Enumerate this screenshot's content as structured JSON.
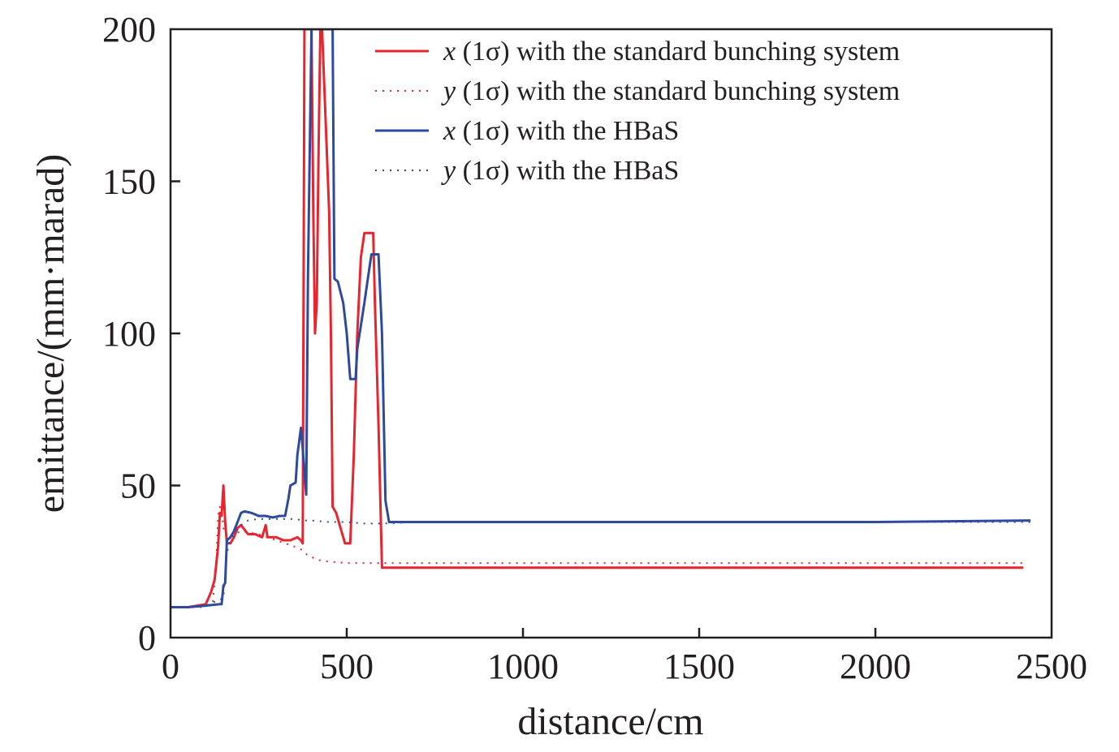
{
  "chart_data": {
    "type": "line",
    "xlabel": "distance/cm",
    "ylabel": "emittance/(mm·marad)",
    "xlim": [
      0,
      2500
    ],
    "ylim": [
      0,
      200
    ],
    "xticks": [
      0,
      500,
      1000,
      1500,
      2000,
      2500
    ],
    "yticks": [
      0,
      50,
      100,
      150,
      200
    ],
    "xtick_labels": [
      "0",
      "500",
      "1000",
      "1500",
      "2000",
      "2500"
    ],
    "ytick_labels": [
      "0",
      "50",
      "100",
      "150",
      "200"
    ],
    "grid": false,
    "legend_position": "top-right",
    "series": [
      {
        "name": "x (1σ) with the standard bunching system",
        "legend_var": "x",
        "legend_rest": "(1σ) with the standard bunching system",
        "color": "#e8252e",
        "dash": "solid",
        "points": [
          [
            0,
            10
          ],
          [
            50,
            10
          ],
          [
            100,
            11
          ],
          [
            115,
            15
          ],
          [
            125,
            19
          ],
          [
            135,
            30
          ],
          [
            140,
            41
          ],
          [
            145,
            40
          ],
          [
            150,
            50
          ],
          [
            155,
            38
          ],
          [
            160,
            31
          ],
          [
            170,
            31
          ],
          [
            180,
            33
          ],
          [
            190,
            36
          ],
          [
            200,
            37
          ],
          [
            220,
            34
          ],
          [
            240,
            34
          ],
          [
            260,
            33
          ],
          [
            270,
            37
          ],
          [
            275,
            33
          ],
          [
            300,
            33
          ],
          [
            320,
            32
          ],
          [
            340,
            32
          ],
          [
            360,
            33
          ],
          [
            370,
            32
          ],
          [
            375,
            31
          ],
          [
            380,
            200
          ],
          [
            385,
            200
          ],
          [
            400,
            200
          ],
          [
            405,
            140
          ],
          [
            410,
            100
          ],
          [
            415,
            110
          ],
          [
            420,
            160
          ],
          [
            425,
            200
          ],
          [
            430,
            200
          ],
          [
            440,
            170
          ],
          [
            450,
            140
          ],
          [
            455,
            100
          ],
          [
            460,
            43
          ],
          [
            470,
            41
          ],
          [
            480,
            37
          ],
          [
            490,
            33
          ],
          [
            495,
            31
          ],
          [
            510,
            31
          ],
          [
            520,
            60
          ],
          [
            530,
            100
          ],
          [
            540,
            125
          ],
          [
            550,
            133
          ],
          [
            575,
            133
          ],
          [
            580,
            110
          ],
          [
            590,
            70
          ],
          [
            600,
            23
          ],
          [
            700,
            23
          ],
          [
            1000,
            23
          ],
          [
            1500,
            23
          ],
          [
            2000,
            23
          ],
          [
            2300,
            23
          ],
          [
            2420,
            23
          ]
        ]
      },
      {
        "name": "y (1σ) with the standard bunching system",
        "legend_var": "y",
        "legend_rest": "(1σ) with the standard bunching system",
        "color": "#e8252e",
        "dash": "dotted",
        "points": [
          [
            0,
            10
          ],
          [
            50,
            10
          ],
          [
            100,
            10
          ],
          [
            120,
            12
          ],
          [
            130,
            25
          ],
          [
            135,
            40
          ],
          [
            140,
            43
          ],
          [
            145,
            42
          ],
          [
            150,
            36
          ],
          [
            160,
            33
          ],
          [
            180,
            34
          ],
          [
            200,
            35
          ],
          [
            250,
            34
          ],
          [
            300,
            32
          ],
          [
            350,
            30
          ],
          [
            370,
            29
          ],
          [
            390,
            27
          ],
          [
            420,
            25.5
          ],
          [
            450,
            25
          ],
          [
            500,
            24.5
          ],
          [
            550,
            24.5
          ],
          [
            600,
            24.5
          ],
          [
            700,
            24.5
          ],
          [
            1000,
            24.5
          ],
          [
            1500,
            24.5
          ],
          [
            2000,
            24.5
          ],
          [
            2420,
            24.5
          ]
        ]
      },
      {
        "name": "x (1σ) with the HBaS",
        "legend_var": "x",
        "legend_rest": "(1σ) with the HBaS",
        "color": "#2e4a9e",
        "dash": "solid",
        "points": [
          [
            0,
            10
          ],
          [
            50,
            10
          ],
          [
            100,
            10.5
          ],
          [
            140,
            11
          ],
          [
            145,
            11
          ],
          [
            150,
            17
          ],
          [
            155,
            18
          ],
          [
            160,
            32
          ],
          [
            170,
            33
          ],
          [
            180,
            35
          ],
          [
            190,
            38
          ],
          [
            200,
            41
          ],
          [
            210,
            41.5
          ],
          [
            230,
            41
          ],
          [
            250,
            40
          ],
          [
            270,
            40
          ],
          [
            290,
            39.5
          ],
          [
            310,
            40
          ],
          [
            325,
            40
          ],
          [
            335,
            46
          ],
          [
            340,
            50
          ],
          [
            355,
            51
          ],
          [
            360,
            60
          ],
          [
            370,
            69
          ],
          [
            375,
            62
          ],
          [
            385,
            47
          ],
          [
            390,
            120
          ],
          [
            400,
            200
          ],
          [
            410,
            200
          ],
          [
            460,
            200
          ],
          [
            465,
            118
          ],
          [
            475,
            117
          ],
          [
            490,
            110
          ],
          [
            500,
            100
          ],
          [
            510,
            85
          ],
          [
            525,
            85
          ],
          [
            530,
            95
          ],
          [
            550,
            110
          ],
          [
            560,
            118
          ],
          [
            570,
            126
          ],
          [
            590,
            126
          ],
          [
            600,
            100
          ],
          [
            610,
            45
          ],
          [
            620,
            38
          ],
          [
            700,
            38
          ],
          [
            1000,
            38
          ],
          [
            1500,
            38
          ],
          [
            2000,
            38
          ],
          [
            2440,
            38.5
          ]
        ]
      },
      {
        "name": "y (1σ) with the HBaS",
        "legend_var": "y",
        "legend_rest": "(1σ) with the HBaS",
        "color": "#2e4a9e",
        "dash": "dotted",
        "points": [
          [
            0,
            10
          ],
          [
            50,
            10
          ],
          [
            100,
            10.5
          ],
          [
            150,
            13
          ],
          [
            160,
            28
          ],
          [
            170,
            32
          ],
          [
            180,
            34
          ],
          [
            200,
            37
          ],
          [
            220,
            38.5
          ],
          [
            250,
            39
          ],
          [
            300,
            39
          ],
          [
            350,
            39
          ],
          [
            380,
            38.5
          ],
          [
            400,
            38.5
          ],
          [
            450,
            38
          ],
          [
            500,
            38
          ],
          [
            550,
            37.5
          ],
          [
            600,
            37.5
          ],
          [
            700,
            38
          ],
          [
            1000,
            38
          ],
          [
            1500,
            38
          ],
          [
            2000,
            38
          ],
          [
            2440,
            38
          ]
        ]
      }
    ]
  }
}
